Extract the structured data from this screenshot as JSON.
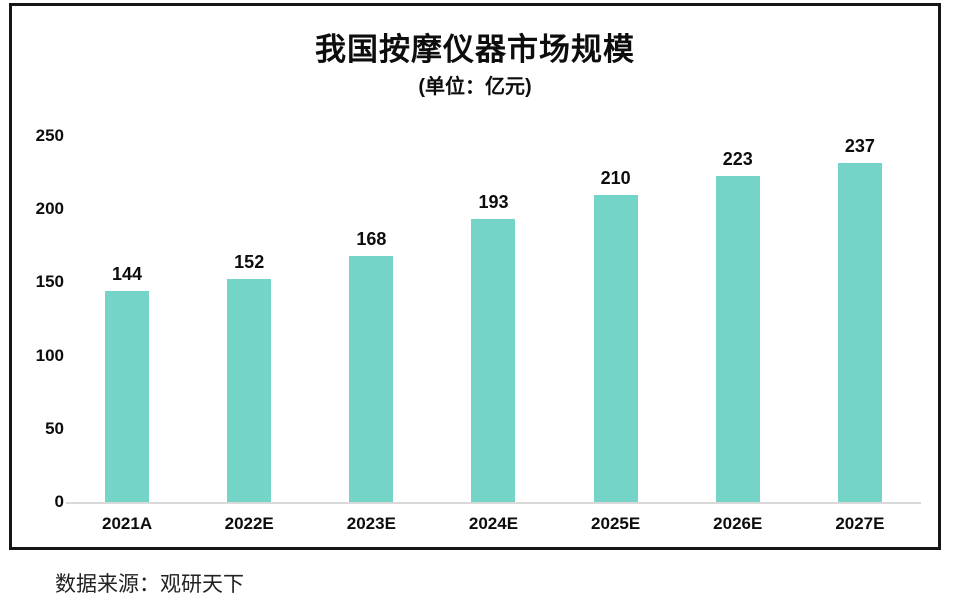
{
  "chart_data": {
    "type": "bar",
    "title": "我国按摩仪器市场规模",
    "subtitle": "(单位：亿元)",
    "categories": [
      "2021A",
      "2022E",
      "2023E",
      "2024E",
      "2025E",
      "2026E",
      "2027E"
    ],
    "values": [
      144,
      152,
      168,
      193,
      210,
      223,
      237
    ],
    "xlabel": "",
    "ylabel": "",
    "ylim": [
      0,
      250
    ],
    "yticks": [
      0,
      50,
      100,
      150,
      200,
      250
    ],
    "grid": "off",
    "legend": "none",
    "bar_color": "#74d4c7",
    "baseline_color": "#d9d9d9",
    "text_color": "#0d0d0d",
    "frame_color": "#161616",
    "source": "数据来源：观研天下"
  }
}
